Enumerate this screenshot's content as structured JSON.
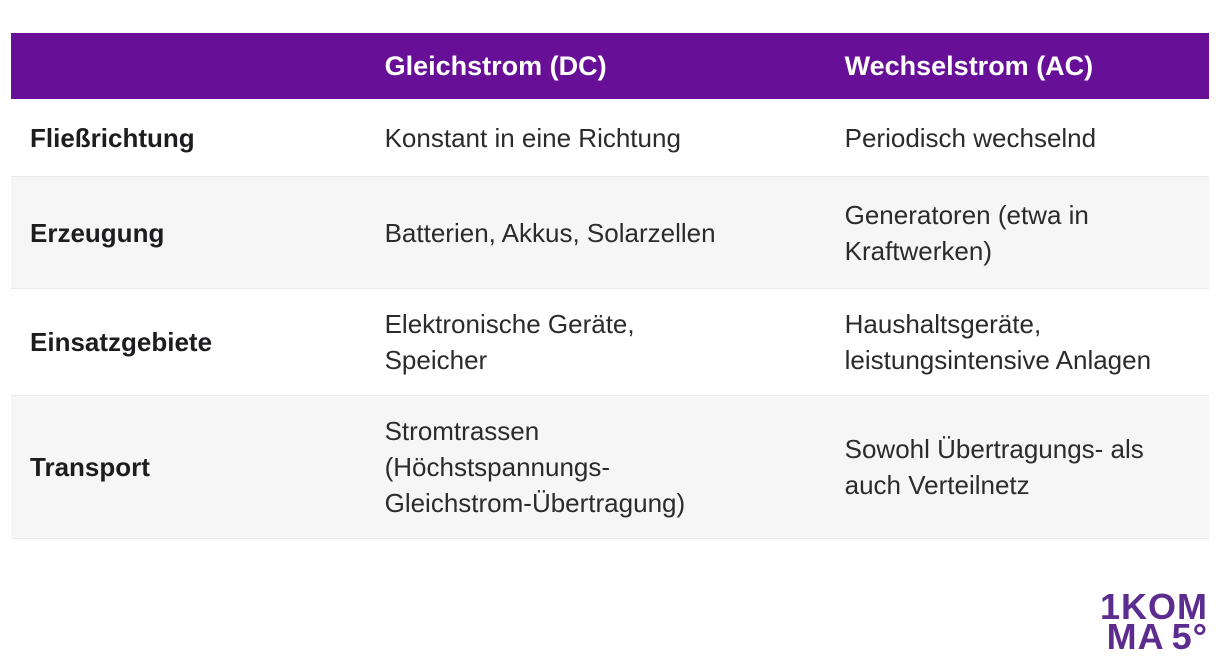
{
  "colors": {
    "header_bg": "#670F96",
    "row_alt_bg": "#F6F6F6",
    "row_border": "#E9E9E9",
    "header_text": "#FFFFFF",
    "label_text": "#1D1D1F",
    "body_text": "#2B2B2B",
    "logo_purple": "#5C2C8F"
  },
  "table": {
    "columns": [
      "",
      "Gleichstrom (DC)",
      "Wechselstrom (AC)"
    ],
    "rows": [
      {
        "label": "Fließrichtung",
        "dc": "Konstant in eine Richtung",
        "ac": "Periodisch wechselnd"
      },
      {
        "label": "Erzeugung",
        "dc": "Batterien, Akkus, Solarzellen",
        "ac": "Generatoren (etwa in\nKraftwerken)"
      },
      {
        "label": "Einsatzgebiete",
        "dc": "Elektronische Geräte,\nSpeicher",
        "ac": "Haushaltsgeräte,\nleistungsintensive Anlagen"
      },
      {
        "label": "Transport",
        "dc": "Stromtrassen\n(Höchstspannungs-\nGleichstrom-Übertragung)",
        "ac": "Sowohl Übertragungs- als\nauch Verteilnetz"
      }
    ]
  },
  "logo": {
    "digit": "1",
    "part1": "KOM",
    "part2": "MA",
    "part3": "5°"
  }
}
